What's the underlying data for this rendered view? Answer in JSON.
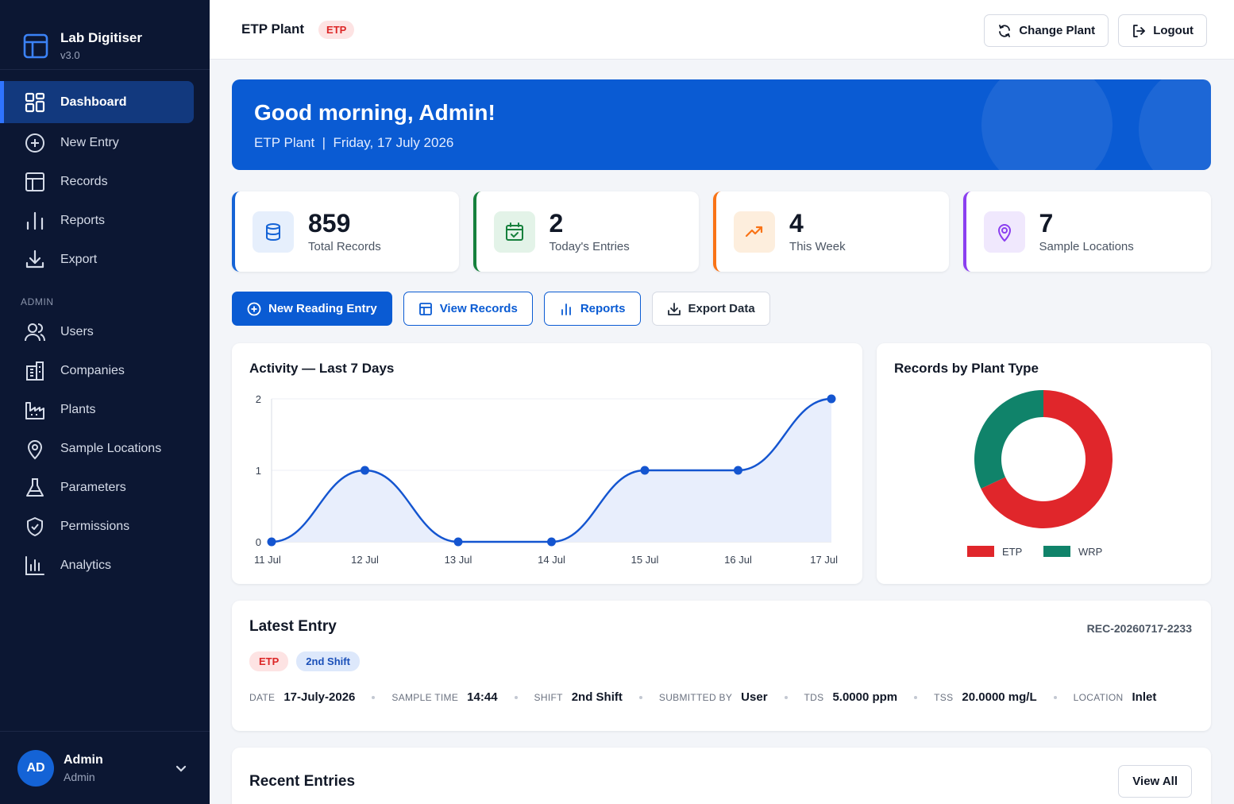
{
  "brand": {
    "name": "Lab Digitiser",
    "version": "v3.0"
  },
  "sidebar": {
    "items": [
      {
        "label": "Dashboard",
        "icon": "dashboard-icon",
        "active": true
      },
      {
        "label": "New Entry",
        "icon": "plus-circle-icon"
      },
      {
        "label": "Records",
        "icon": "table-icon"
      },
      {
        "label": "Reports",
        "icon": "bar-chart-icon"
      },
      {
        "label": "Export",
        "icon": "download-icon"
      }
    ],
    "admin_section": "ADMIN",
    "admin_items": [
      {
        "label": "Users",
        "icon": "users-icon"
      },
      {
        "label": "Companies",
        "icon": "building-icon"
      },
      {
        "label": "Plants",
        "icon": "factory-icon"
      },
      {
        "label": "Sample Locations",
        "icon": "map-pin-icon"
      },
      {
        "label": "Parameters",
        "icon": "flask-icon"
      },
      {
        "label": "Permissions",
        "icon": "shield-check-icon"
      },
      {
        "label": "Analytics",
        "icon": "analytics-icon"
      }
    ],
    "user": {
      "initials": "AD",
      "name": "Admin",
      "role": "Admin"
    }
  },
  "header": {
    "title": "ETP Plant",
    "badge": "ETP",
    "change_plant": "Change Plant",
    "logout": "Logout"
  },
  "hero": {
    "greeting": "Good morning, Admin!",
    "subtitle": "ETP Plant  |  Friday, 17 July 2026"
  },
  "stats": [
    {
      "value": "859",
      "label": "Total Records",
      "color": "#1463d6",
      "bg": "#e6effc",
      "icon": "database-icon"
    },
    {
      "value": "2",
      "label": "Today's Entries",
      "color": "#16803c",
      "bg": "#e3f3e8",
      "icon": "calendar-check-icon"
    },
    {
      "value": "4",
      "label": "This Week",
      "color": "#f97316",
      "bg": "#fdeedd",
      "icon": "trend-up-icon"
    },
    {
      "value": "7",
      "label": "Sample Locations",
      "color": "#8b3ff0",
      "bg": "#f0e8fd",
      "icon": "map-pin-icon"
    }
  ],
  "quick_actions": {
    "new_reading": "New Reading Entry",
    "view_records": "View Records",
    "reports": "Reports",
    "export": "Export Data"
  },
  "activity": {
    "title": "Activity — Last 7 Days",
    "chart_data": {
      "type": "line",
      "categories": [
        "11 Jul",
        "12 Jul",
        "13 Jul",
        "14 Jul",
        "15 Jul",
        "16 Jul",
        "17 Jul"
      ],
      "values": [
        0,
        1,
        0,
        0,
        1,
        1,
        2
      ],
      "yticks": [
        0,
        1,
        2
      ],
      "ylim": [
        0,
        2
      ],
      "color": "#1455d0",
      "fill": "#e8eefc",
      "grid": true
    }
  },
  "plant_type": {
    "title": "Records by Plant Type",
    "chart_data": {
      "type": "pie",
      "labels": [
        "ETP",
        "WRP"
      ],
      "values": [
        68,
        32
      ],
      "colors": [
        "#e0262b",
        "#10836a"
      ],
      "legend": "bottom"
    }
  },
  "latest": {
    "title": "Latest Entry",
    "record_id": "REC-20260717-2233",
    "chip_plant": "ETP",
    "chip_shift": "2nd Shift",
    "fields": [
      {
        "key": "DATE",
        "value": "17-July-2026"
      },
      {
        "key": "SAMPLE TIME",
        "value": "14:44"
      },
      {
        "key": "SHIFT",
        "value": "2nd Shift"
      },
      {
        "key": "SUBMITTED BY",
        "value": "User"
      },
      {
        "key": "TDS",
        "value": "5.0000 ppm"
      },
      {
        "key": "TSS",
        "value": "20.0000 mg/L"
      },
      {
        "key": "LOCATION",
        "value": "Inlet"
      }
    ]
  },
  "recent": {
    "title": "Recent Entries",
    "view_all": "View All"
  }
}
